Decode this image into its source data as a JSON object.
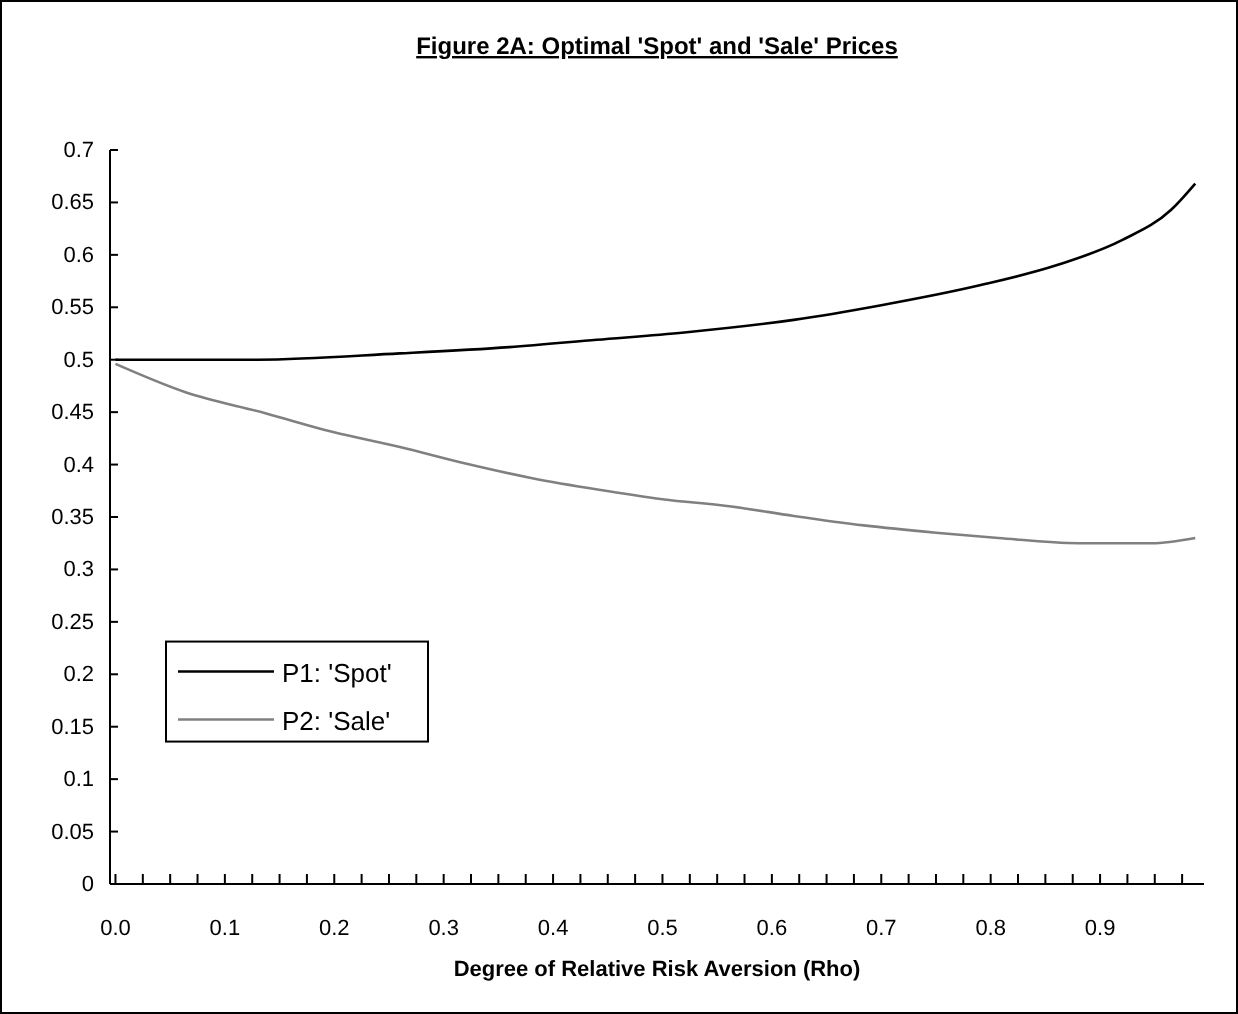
{
  "chart_data": {
    "type": "line",
    "title": "Figure 2A: Optimal 'Spot' and 'Sale' Prices",
    "xlabel": "Degree of Relative Risk Aversion (Rho)",
    "xlim": [
      -0.005,
      0.995
    ],
    "ylim": [
      0,
      0.7
    ],
    "xticks": [
      {
        "value": 0,
        "label": "0.0"
      },
      {
        "value": 0.025,
        "label": null
      },
      {
        "value": 0.05,
        "label": null
      },
      {
        "value": 0.075,
        "label": null
      },
      {
        "value": 0.1,
        "label": "0.1"
      },
      {
        "value": 0.125,
        "label": null
      },
      {
        "value": 0.15,
        "label": null
      },
      {
        "value": 0.175,
        "label": null
      },
      {
        "value": 0.2,
        "label": "0.2"
      },
      {
        "value": 0.225,
        "label": null
      },
      {
        "value": 0.25,
        "label": null
      },
      {
        "value": 0.275,
        "label": null
      },
      {
        "value": 0.3,
        "label": "0.3"
      },
      {
        "value": 0.325,
        "label": null
      },
      {
        "value": 0.35,
        "label": null
      },
      {
        "value": 0.375,
        "label": null
      },
      {
        "value": 0.4,
        "label": "0.4"
      },
      {
        "value": 0.425,
        "label": null
      },
      {
        "value": 0.45,
        "label": null
      },
      {
        "value": 0.475,
        "label": null
      },
      {
        "value": 0.5,
        "label": "0.5"
      },
      {
        "value": 0.525,
        "label": null
      },
      {
        "value": 0.55,
        "label": null
      },
      {
        "value": 0.575,
        "label": null
      },
      {
        "value": 0.6,
        "label": "0.6"
      },
      {
        "value": 0.625,
        "label": null
      },
      {
        "value": 0.65,
        "label": null
      },
      {
        "value": 0.675,
        "label": null
      },
      {
        "value": 0.7,
        "label": "0.7"
      },
      {
        "value": 0.725,
        "label": null
      },
      {
        "value": 0.75,
        "label": null
      },
      {
        "value": 0.775,
        "label": null
      },
      {
        "value": 0.8,
        "label": "0.8"
      },
      {
        "value": 0.825,
        "label": null
      },
      {
        "value": 0.85,
        "label": null
      },
      {
        "value": 0.875,
        "label": null
      },
      {
        "value": 0.9,
        "label": "0.9"
      },
      {
        "value": 0.925,
        "label": null
      },
      {
        "value": 0.95,
        "label": null
      },
      {
        "value": 0.975,
        "label": null
      }
    ],
    "yticks": [
      0,
      0.05,
      0.1,
      0.15,
      0.2,
      0.25,
      0.3,
      0.35,
      0.4,
      0.45,
      0.5,
      0.55,
      0.6,
      0.65,
      0.7
    ],
    "grid": false,
    "legend": "bottom left",
    "marker": "none",
    "line_style": "solid",
    "series": [
      {
        "name": "P1: 'Spot'",
        "color": "#000000",
        "x": [
          0,
          0.13,
          0.26,
          0.36,
          0.44,
          0.52,
          0.62,
          0.7,
          0.79,
          0.86,
          0.92,
          0.965,
          0.987
        ],
        "values": [
          0.5,
          0.5,
          0.506,
          0.512,
          0.519,
          0.526,
          0.538,
          0.552,
          0.571,
          0.59,
          0.614,
          0.643,
          0.668
        ]
      },
      {
        "name": "P2: 'Sale'",
        "color": "#808080",
        "x": [
          0,
          0.064,
          0.137,
          0.199,
          0.259,
          0.32,
          0.381,
          0.442,
          0.5,
          0.563,
          0.62,
          0.684,
          0.75,
          0.807,
          0.88,
          0.947,
          0.987
        ],
        "values": [
          0.496,
          0.469,
          0.449,
          0.431,
          0.417,
          0.401,
          0.387,
          0.376,
          0.367,
          0.36,
          0.351,
          0.342,
          0.335,
          0.33,
          0.325,
          0.325,
          0.33
        ]
      }
    ]
  }
}
